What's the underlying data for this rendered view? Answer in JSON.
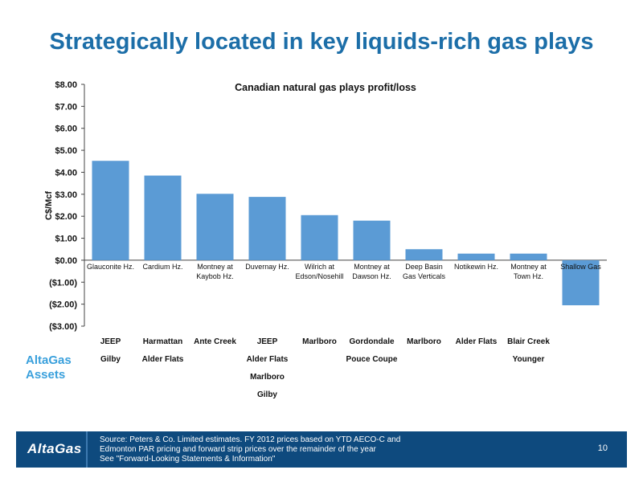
{
  "slide": {
    "title": "Strategically located in key liquids-rich gas plays",
    "assets_label_line1": "AltaGas",
    "assets_label_line2": "Assets",
    "footer": {
      "logo": "AltaGas",
      "source_line1": "Source: Peters & Co. Limited estimates. FY 2012 prices based on YTD AECO-C and",
      "source_line2": "Edmonton PAR pricing and forward strip prices over the remainder of the year",
      "source_line3": "See \"Forward-Looking Statements & Information\"",
      "page_number": "10"
    },
    "colors": {
      "title": "#1c6ea8",
      "bar": "#5b9bd5",
      "footer_bg": "#0e4a7e",
      "assets_label": "#3aa0dc"
    }
  },
  "chart_data": {
    "type": "bar",
    "title": "Canadian natural gas plays profit/loss",
    "ylabel": "C$/Mcf",
    "xlabel": "",
    "ylim": [
      -3,
      8
    ],
    "yticks": [
      8,
      7,
      6,
      5,
      4,
      3,
      2,
      1,
      0,
      -1,
      -2,
      -3
    ],
    "ytick_labels": [
      "$8.00",
      "$7.00",
      "$6.00",
      "$5.00",
      "$4.00",
      "$3.00",
      "$2.00",
      "$1.00",
      "$0.00",
      "($1.00)",
      "($2.00)",
      "($3.00)"
    ],
    "grid": false,
    "legend": "none",
    "categories": [
      [
        "Glauconite Hz."
      ],
      [
        "Cardium Hz."
      ],
      [
        "Montney at",
        "Kaybob Hz."
      ],
      [
        "Duvernay Hz."
      ],
      [
        "Wilrich at",
        "Edson/Nosehill"
      ],
      [
        "Montney at",
        "Dawson Hz."
      ],
      [
        "Deep Basin",
        "Gas Verticals"
      ],
      [
        "Notikewin Hz."
      ],
      [
        "Montney at",
        "Town Hz."
      ],
      [
        "Shallow Gas"
      ]
    ],
    "values": [
      4.52,
      3.85,
      3.02,
      2.88,
      2.05,
      1.8,
      0.5,
      0.3,
      0.3,
      -2.05
    ]
  },
  "assets": [
    [
      "JEEP",
      "Gilby"
    ],
    [
      "Harmattan",
      "Alder Flats"
    ],
    [
      "Ante Creek"
    ],
    [
      "JEEP",
      "Alder Flats",
      "Marlboro",
      "Gilby"
    ],
    [
      "Marlboro"
    ],
    [
      "Gordondale",
      "Pouce Coupe"
    ],
    [
      "Marlboro"
    ],
    [
      "Alder Flats"
    ],
    [
      "Blair Creek",
      "Younger"
    ],
    []
  ]
}
